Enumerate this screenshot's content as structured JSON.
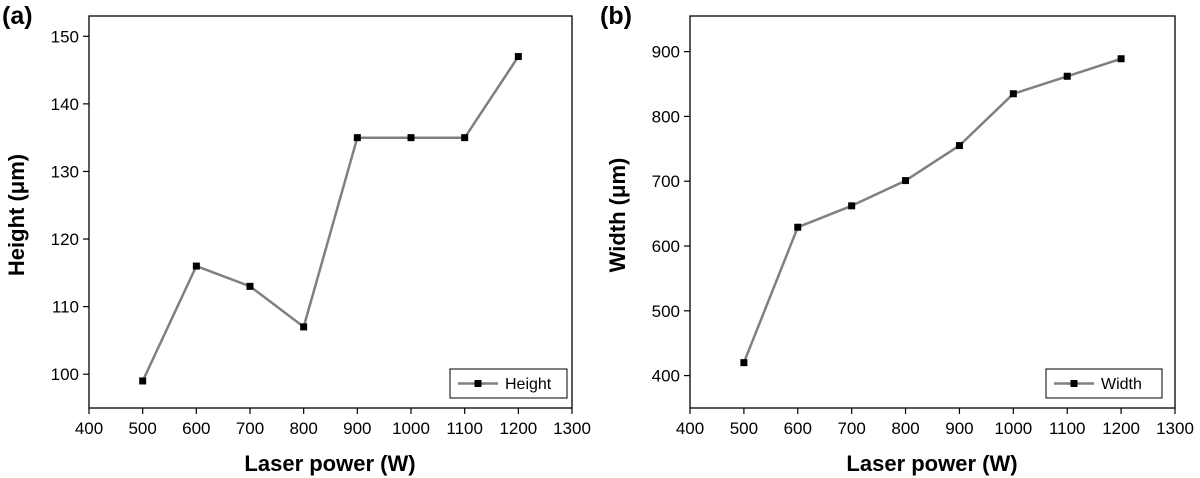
{
  "chart_data": [
    {
      "type": "line",
      "panel_label": "(a)",
      "xlabel": "Laser power (W)",
      "ylabel": "Height (μm)",
      "xlim": [
        400,
        1300
      ],
      "ylim": [
        95,
        153
      ],
      "xticks": [
        400,
        500,
        600,
        700,
        800,
        900,
        1000,
        1100,
        1200,
        1300
      ],
      "yticks": [
        100,
        110,
        120,
        130,
        140,
        150
      ],
      "grid": false,
      "legend_position": "bottom-right",
      "series": [
        {
          "name": "Height",
          "color": "#808080",
          "marker_color": "#000000",
          "x": [
            500,
            600,
            700,
            800,
            900,
            1000,
            1100,
            1200
          ],
          "y": [
            99,
            116,
            113,
            107,
            135,
            135,
            135,
            147
          ]
        }
      ]
    },
    {
      "type": "line",
      "panel_label": "(b)",
      "xlabel": "Laser power (W)",
      "ylabel": "Width (μm)",
      "xlim": [
        400,
        1300
      ],
      "ylim": [
        350,
        955
      ],
      "xticks": [
        400,
        500,
        600,
        700,
        800,
        900,
        1000,
        1100,
        1200,
        1300
      ],
      "yticks": [
        400,
        500,
        600,
        700,
        800,
        900
      ],
      "grid": false,
      "legend_position": "bottom-right",
      "series": [
        {
          "name": "Width",
          "color": "#808080",
          "marker_color": "#000000",
          "x": [
            500,
            600,
            700,
            800,
            900,
            1000,
            1100,
            1200
          ],
          "y": [
            420,
            629,
            662,
            701,
            755,
            835,
            862,
            889
          ]
        }
      ]
    }
  ]
}
